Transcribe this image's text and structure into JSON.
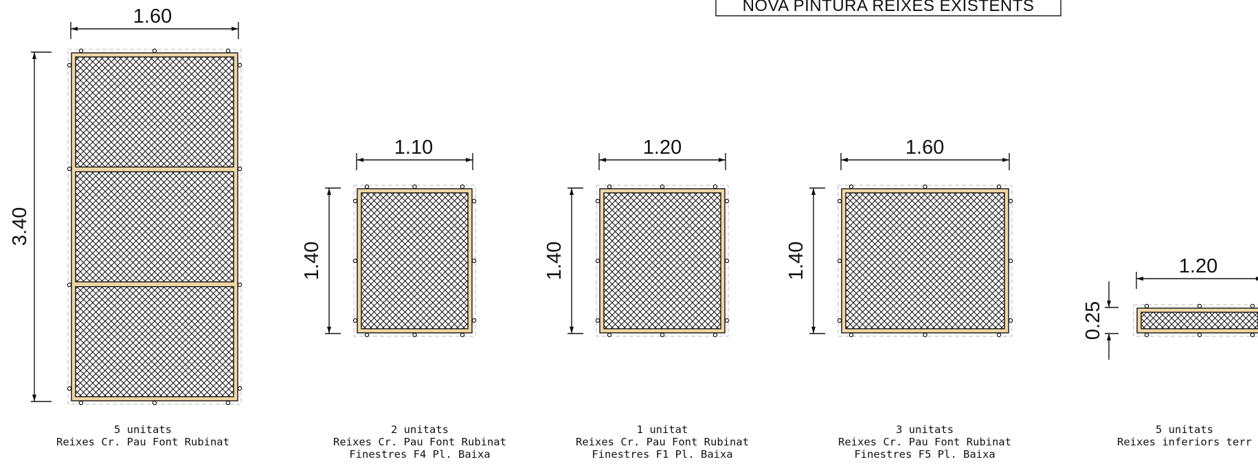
{
  "title": "NOVA PINTURA REIXES EXISTENTS",
  "grilles": [
    {
      "width_label": "1.60",
      "height_label": "3.40",
      "panels": 3,
      "caption": [
        "5 unitats",
        "Reixes Cr. Pau Font Rubinat"
      ]
    },
    {
      "width_label": "1.10",
      "height_label": "1.40",
      "panels": 1,
      "caption": [
        "2 unitats",
        "Reixes Cr. Pau Font Rubinat",
        "Finestres F4 Pl. Baixa"
      ]
    },
    {
      "width_label": "1.20",
      "height_label": "1.40",
      "panels": 1,
      "caption": [
        "1 unitat",
        "Reixes Cr. Pau Font Rubinat",
        "Finestres F1 Pl. Baixa"
      ]
    },
    {
      "width_label": "1.60",
      "height_label": "1.40",
      "panels": 1,
      "caption": [
        "3 unitats",
        "Reixes Cr. Pau Font Rubinat",
        "Finestres F5 Pl. Baixa"
      ]
    },
    {
      "width_label": "1.20",
      "height_label": "0.25",
      "panels": 1,
      "caption": [
        "5 unitats",
        "Reixes inferiors terr"
      ]
    }
  ],
  "colors": {
    "frame_fill": "#f1d7a6",
    "line": "#111111",
    "dashed_outline": "#b8b8b8"
  }
}
